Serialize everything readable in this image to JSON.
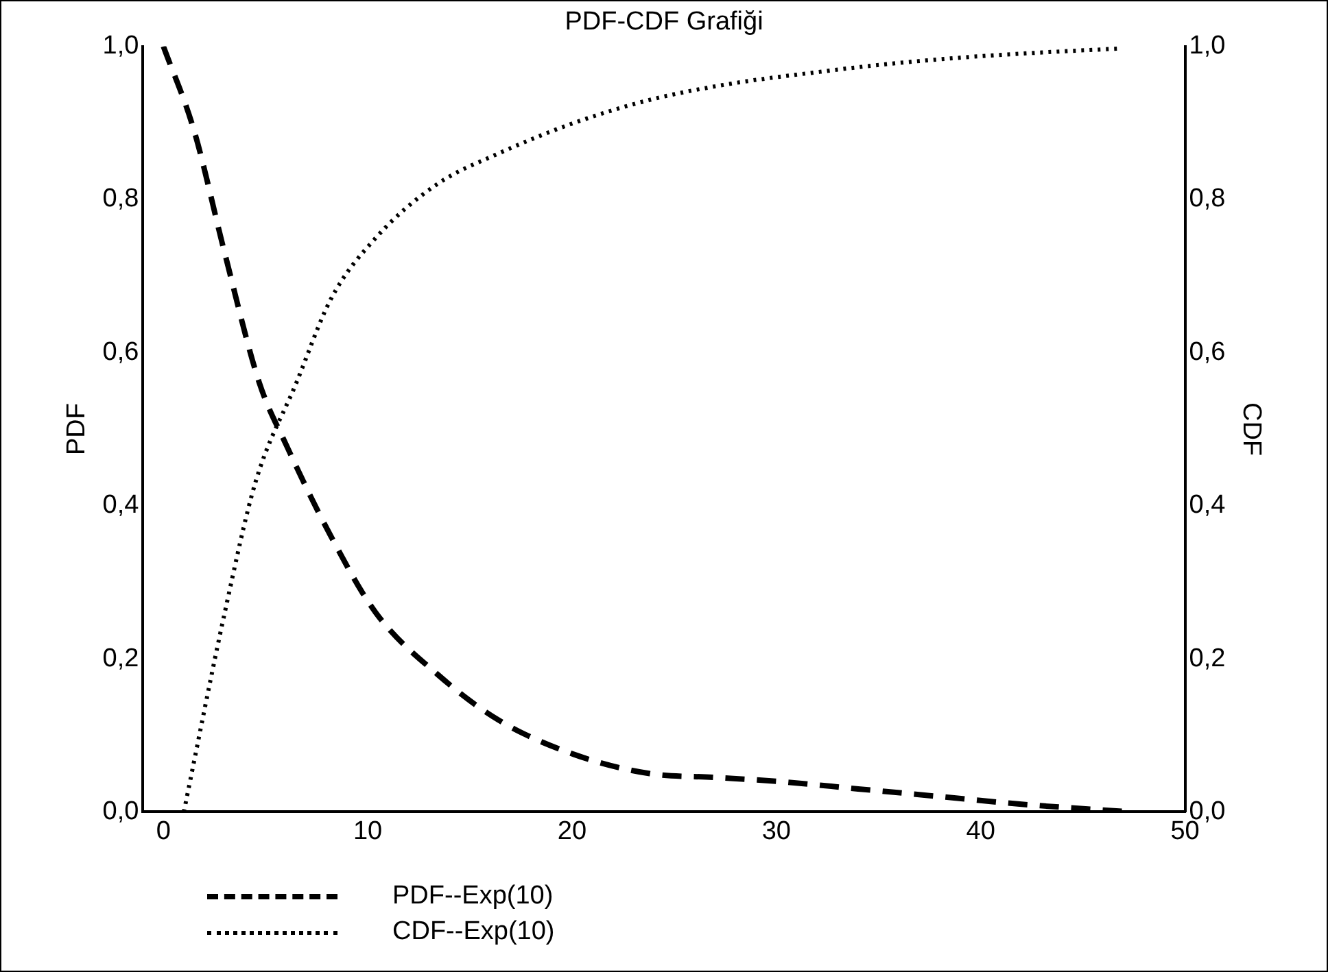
{
  "chart_data": {
    "type": "line",
    "title": "PDF-CDF Grafiği",
    "ylabel": "PDF",
    "y2label": "CDF",
    "xlim": [
      -1,
      50
    ],
    "xticks": [
      0,
      10,
      20,
      30,
      40,
      50
    ],
    "ylim": [
      0,
      1
    ],
    "yticks": [
      {
        "value": 0,
        "label": "0,0"
      },
      {
        "value": 0.2,
        "label": "0,2"
      },
      {
        "value": 0.4,
        "label": "0,4"
      },
      {
        "value": 0.6,
        "label": "0,6"
      },
      {
        "value": 0.8,
        "label": "0,8"
      },
      {
        "value": 1,
        "label": "1,0"
      }
    ],
    "y2lim": [
      0,
      1
    ],
    "y2ticks": [
      {
        "value": 0,
        "label": "0,0"
      },
      {
        "value": 0.2,
        "label": "0,2"
      },
      {
        "value": 0.4,
        "label": "0,4"
      },
      {
        "value": 0.6,
        "label": "0,6"
      },
      {
        "value": 0.8,
        "label": "0,8"
      },
      {
        "value": 1,
        "label": "1,0"
      }
    ],
    "grid": false,
    "legend": "bottom left",
    "marker": "none",
    "series": [
      {
        "name": "PDF--Exp(10)",
        "color": "#000000",
        "line_style": "dashed",
        "x": [
          0,
          1.5,
          3,
          4.7,
          6,
          8.2,
          10.4,
          13.4,
          16.4,
          20.1,
          23.8,
          27,
          30,
          34,
          38,
          42,
          47.3
        ],
        "values": [
          1,
          0.89,
          0.73,
          0.56,
          0.48,
          0.36,
          0.26,
          0.18,
          0.12,
          0.075,
          0.05,
          0.045,
          0.04,
          0.03,
          0.02,
          0.01,
          0
        ]
      },
      {
        "name": "CDF--Exp(10)",
        "color": "#000000",
        "line_style": "dotted",
        "axis": "y2",
        "x": [
          1,
          3,
          4.5,
          6.5,
          8.2,
          10.4,
          13.4,
          16.4,
          20.1,
          23.8,
          27.5,
          31.9,
          35.5,
          39.4,
          43,
          46.7
        ],
        "values": [
          0,
          0.26,
          0.43,
          0.56,
          0.67,
          0.75,
          0.82,
          0.86,
          0.9,
          0.93,
          0.95,
          0.966,
          0.977,
          0.986,
          0.992,
          0.997
        ]
      }
    ]
  }
}
